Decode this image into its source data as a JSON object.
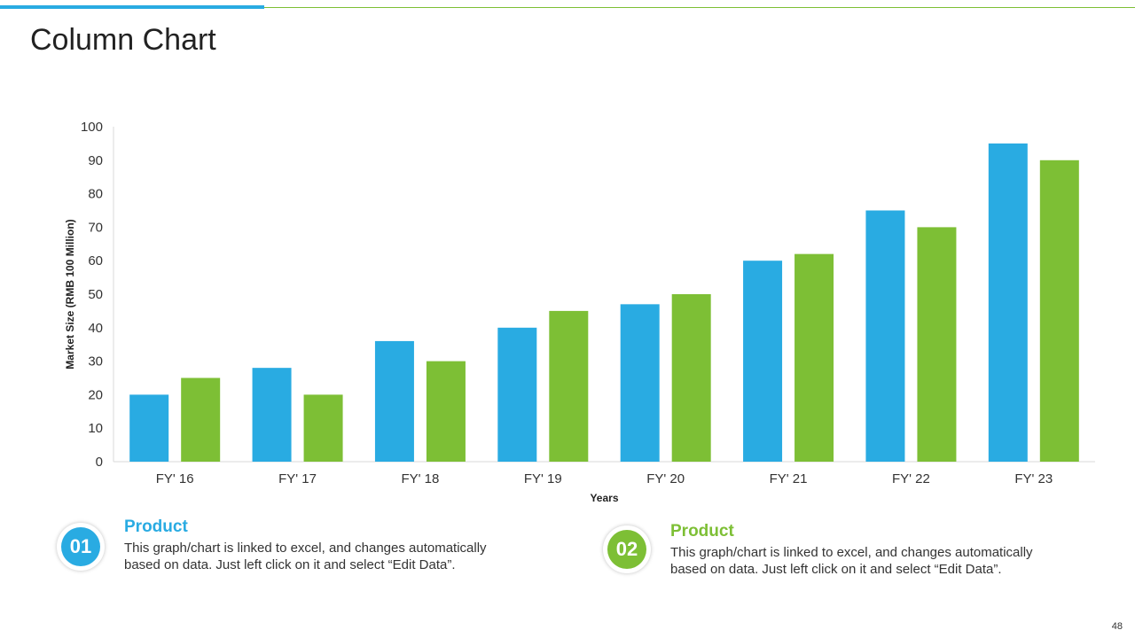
{
  "title": "Column Chart",
  "page_number": "48",
  "colors": {
    "series1": "#29abe2",
    "series2": "#7dbf35"
  },
  "products": [
    {
      "number": "01",
      "heading": "Product",
      "text_line1": "This graph/chart is linked to excel, and changes automatically",
      "text_line2": "based on data. Just left click on it and select “Edit Data”.",
      "color": "#29abe2"
    },
    {
      "number": "02",
      "heading": "Product",
      "text_line1": "This graph/chart is linked to excel, and changes automatically",
      "text_line2": "based on data. Just left click on it and select “Edit Data”.",
      "color": "#7dbf35"
    }
  ],
  "chart_data": {
    "type": "bar",
    "categories": [
      "FY' 16",
      "FY' 17",
      "FY' 18",
      "FY' 19",
      "FY' 20",
      "FY' 21",
      "FY' 22",
      "FY' 23"
    ],
    "series": [
      {
        "values": [
          20,
          28,
          36,
          40,
          47,
          60,
          75,
          95
        ]
      },
      {
        "values": [
          25,
          20,
          30,
          45,
          50,
          62,
          70,
          90
        ]
      }
    ],
    "yticks": [
      "0",
      "10",
      "20",
      "30",
      "40",
      "50",
      "60",
      "70",
      "80",
      "90",
      "100"
    ],
    "ylim": [
      0,
      100
    ],
    "xlabel": "Years",
    "ylabel": "Market Size (RMB 100 Million)",
    "grid": false,
    "legend": "none"
  }
}
